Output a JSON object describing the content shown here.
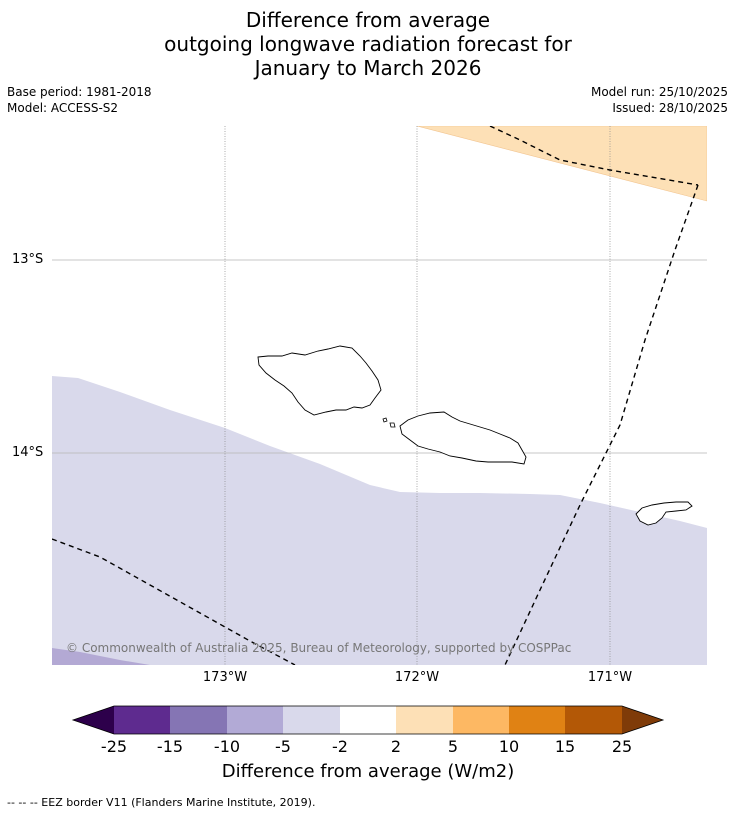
{
  "title": {
    "line1": "Difference from average",
    "line2": "outgoing longwave radiation forecast for",
    "line3": "January to March 2026"
  },
  "meta": {
    "base_period": "Base period: 1981-2018",
    "model": "Model: ACCESS-S2",
    "model_run": "Model run: 25/10/2025",
    "issued": "Issued: 28/10/2025"
  },
  "map": {
    "lat_labels": [
      "13°S",
      "14°S"
    ],
    "lon_labels": [
      "173°W",
      "172°W",
      "171°W"
    ],
    "copyright": "© Commonwealth of Australia 2025, Bureau of Meteorology, supported by COSPPac",
    "fill_colors": {
      "light_orange": "#fde0b6",
      "light_purple": "#d9d9eb",
      "mid_purple": "#b3a9d4"
    }
  },
  "colorbar": {
    "tick_labels": [
      "-25",
      "-15",
      "-10",
      "-5",
      "-2",
      "2",
      "5",
      "10",
      "15",
      "25"
    ],
    "colors": [
      "#2d004b",
      "#5e2b8f",
      "#8575b4",
      "#b2aad6",
      "#d9d9eb",
      "#ffffff",
      "#fde0b6",
      "#fdb863",
      "#e08214",
      "#b35806",
      "#7f3b08"
    ],
    "label": "Difference from average (W/m2)"
  },
  "footer": "--  --  -- EEZ border V11 (Flanders Marine Institute, 2019)."
}
